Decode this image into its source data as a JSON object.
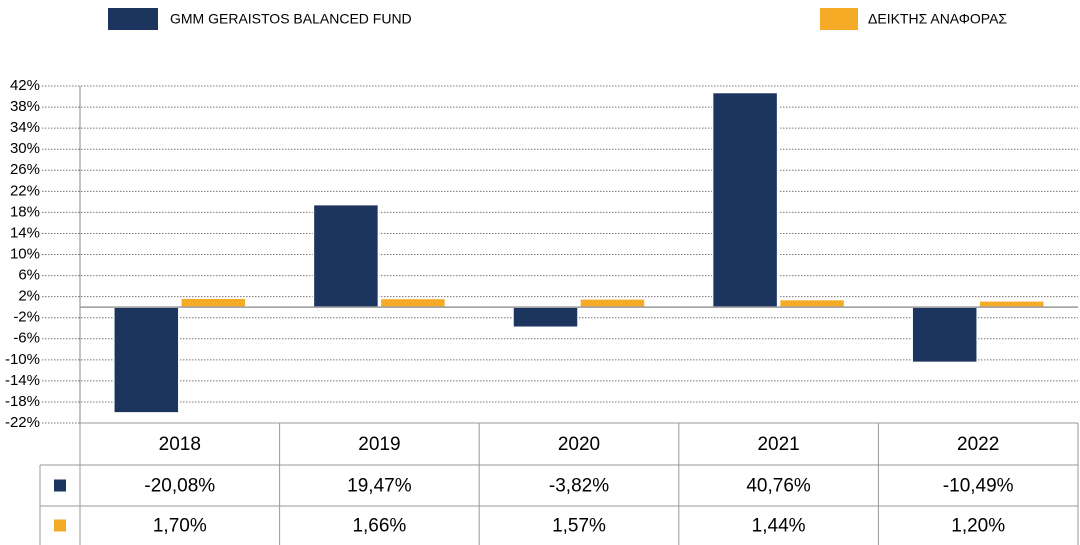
{
  "chart_data": {
    "type": "bar",
    "categories": [
      "2018",
      "2019",
      "2020",
      "2021",
      "2022"
    ],
    "series": [
      {
        "name": "GMM GERAISTOS BALANCED FUND",
        "color": "#1c355e",
        "values": [
          -20.08,
          19.47,
          -3.82,
          40.76,
          -10.49
        ],
        "value_labels": [
          "-20,08%",
          "19,47%",
          "-3,82%",
          "40,76%",
          "-10,49%"
        ]
      },
      {
        "name": "ΔΕΙΚΤΗΣ ΑΝΑΦΟΡΑΣ",
        "color": "#f6ab26",
        "values": [
          1.7,
          1.66,
          1.57,
          1.44,
          1.2
        ],
        "value_labels": [
          "1,70%",
          "1,66%",
          "1,57%",
          "1,44%",
          "1,20%"
        ]
      }
    ],
    "ylim": [
      -22,
      42
    ],
    "yticks": [
      {
        "value": -22,
        "label": "-22%"
      },
      {
        "value": -18,
        "label": "-18%"
      },
      {
        "value": -14,
        "label": "-14%"
      },
      {
        "value": -10,
        "label": "-10%"
      },
      {
        "value": -6,
        "label": "-6%"
      },
      {
        "value": -2,
        "label": "-2%"
      },
      {
        "value": 2,
        "label": "2%"
      },
      {
        "value": 6,
        "label": "6%"
      },
      {
        "value": 10,
        "label": "10%"
      },
      {
        "value": 14,
        "label": "14%"
      },
      {
        "value": 18,
        "label": "18%"
      },
      {
        "value": 22,
        "label": "22%"
      },
      {
        "value": 26,
        "label": "26%"
      },
      {
        "value": 30,
        "label": "30%"
      },
      {
        "value": 34,
        "label": "34%"
      },
      {
        "value": 38,
        "label": "38%"
      },
      {
        "value": 42,
        "label": "42%"
      }
    ],
    "grid": true
  }
}
